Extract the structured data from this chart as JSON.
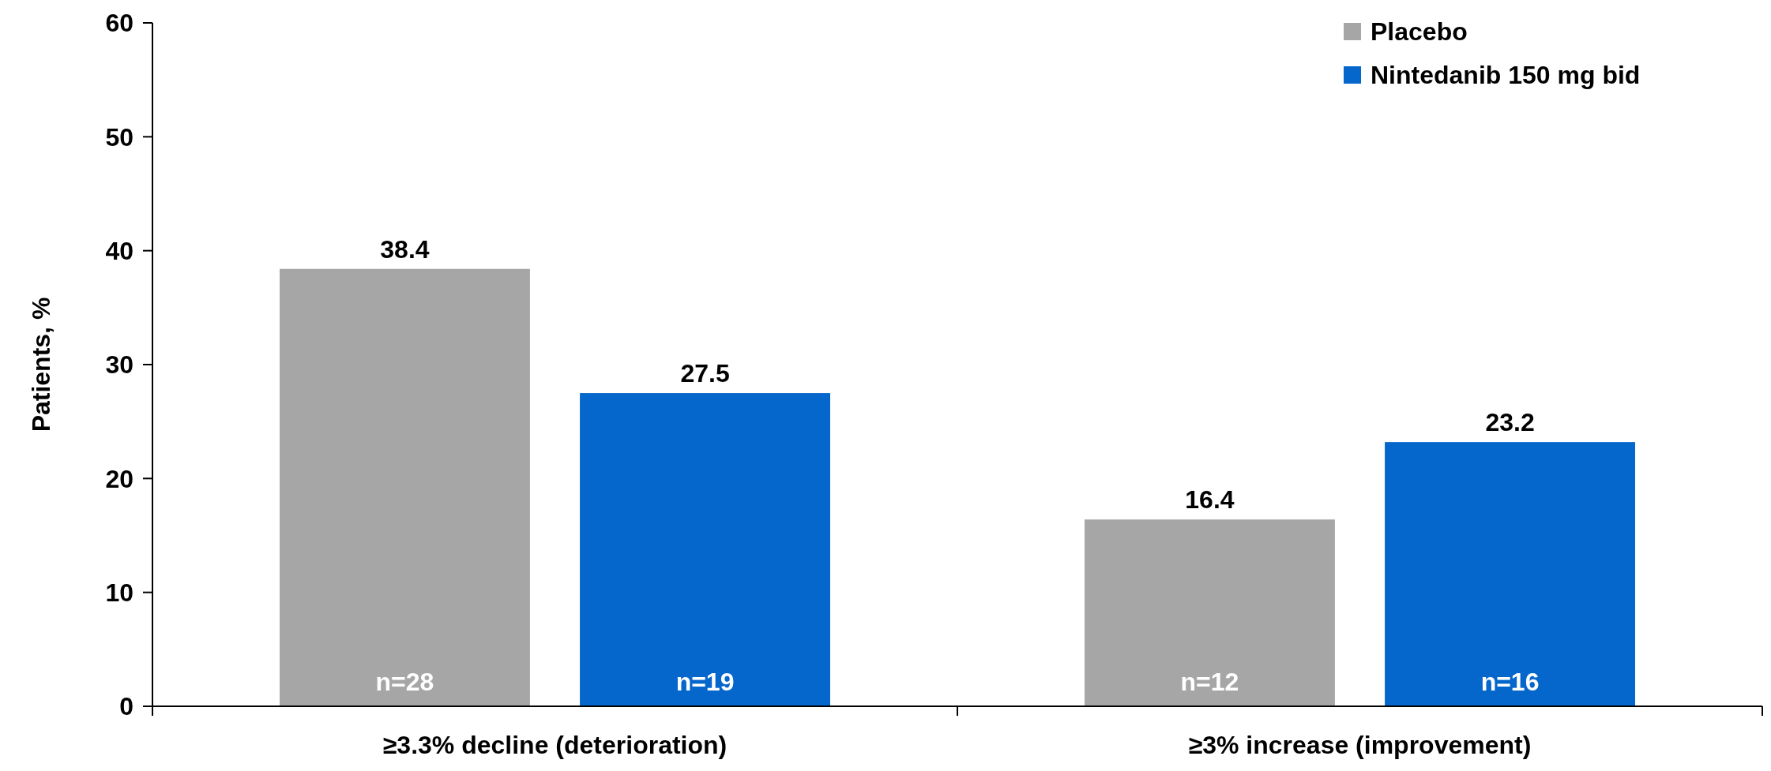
{
  "chart_data": {
    "type": "bar",
    "ylabel": "Patients, %",
    "categories": [
      "≥3.3% decline (deterioration)",
      "≥3% increase (improvement)"
    ],
    "series": [
      {
        "name": "Placebo",
        "color": "#a6a6a6",
        "values": [
          38.4,
          16.4
        ]
      },
      {
        "name": "Nintedanib 150 mg bid",
        "color": "#0566cc",
        "values": [
          27.5,
          23.2
        ]
      }
    ],
    "ylim": [
      0,
      60
    ],
    "yticks": [
      0,
      10,
      20,
      30,
      40,
      50,
      60
    ],
    "data_labels": true,
    "legend": "top right",
    "grid": false,
    "annotations": [
      "n=28",
      "n=19",
      "n=12",
      "n=16"
    ]
  }
}
